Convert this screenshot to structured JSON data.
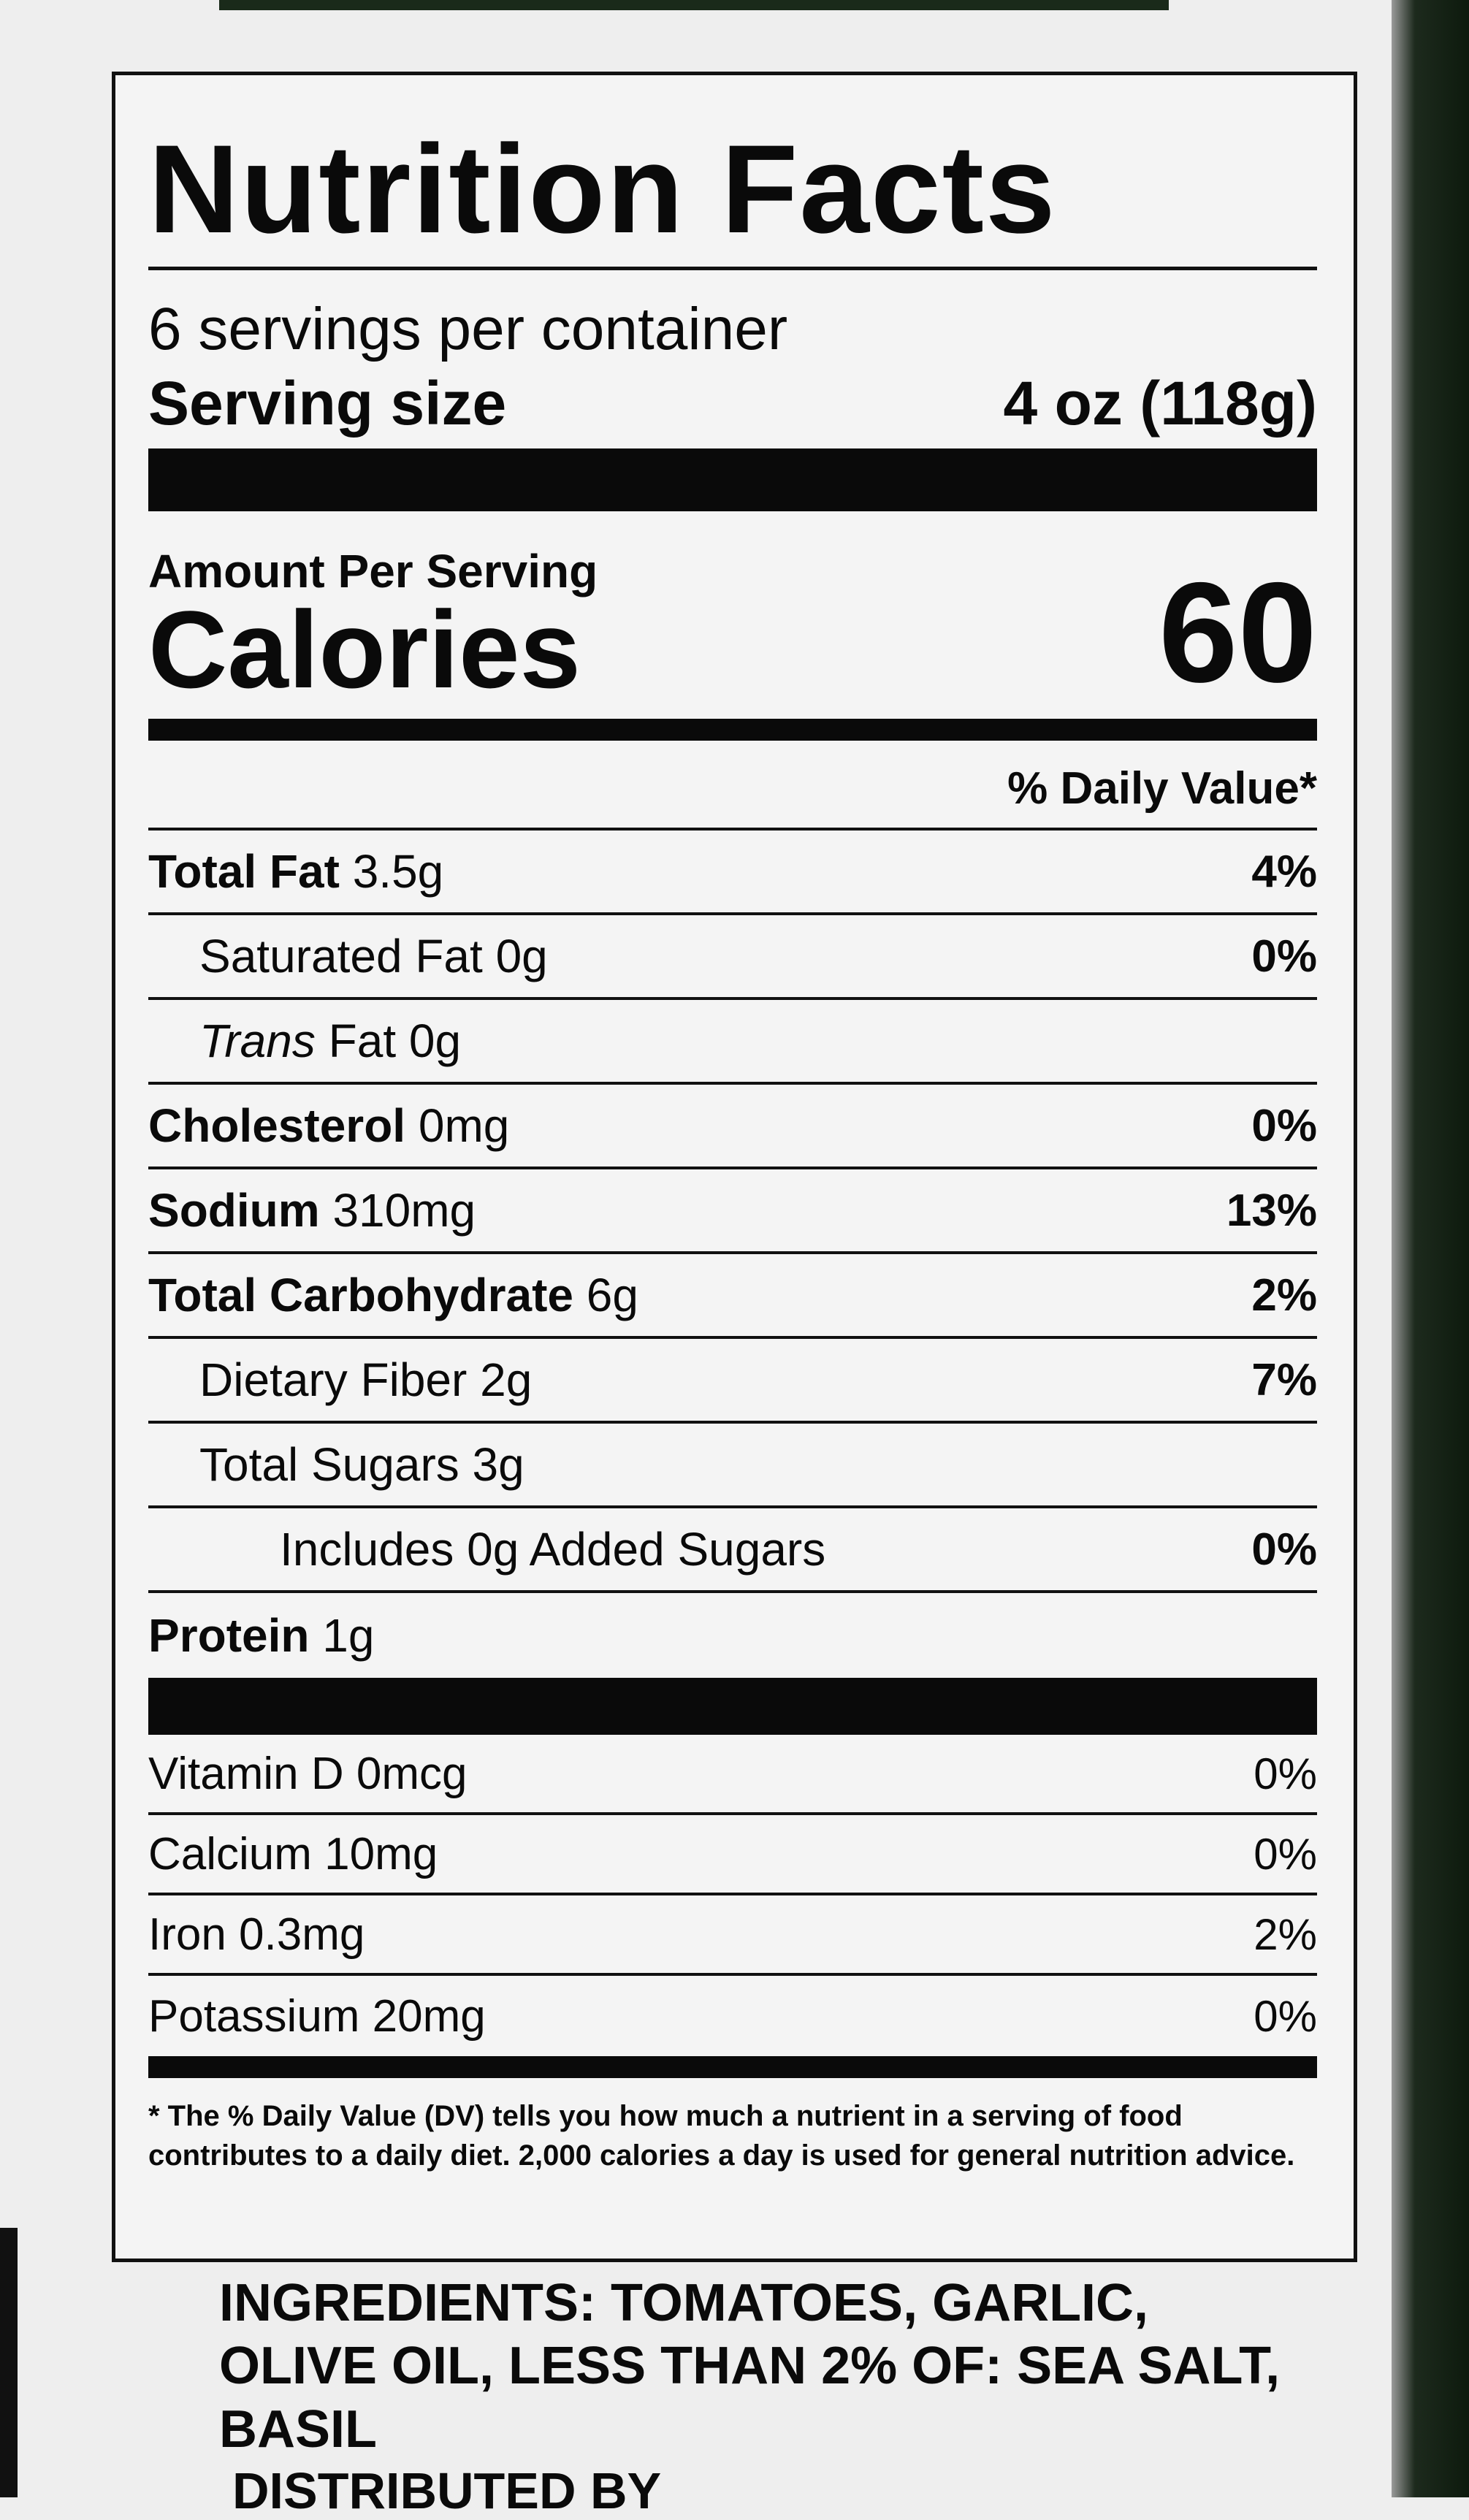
{
  "label": {
    "title": "Nutrition Facts",
    "servings_per_container": "6 servings per container",
    "serving_size_label": "Serving size",
    "serving_size_value": "4 oz (118g)",
    "amount_per_serving": "Amount Per Serving",
    "calories_label": "Calories",
    "calories_value": "60",
    "daily_value_header": "% Daily Value*",
    "nutrients": [
      {
        "name": "Total Fat",
        "amount": "3.5g",
        "dv": "4%"
      },
      {
        "name": "Saturated Fat",
        "amount": "0g",
        "dv": "0%"
      },
      {
        "name": "Trans",
        "name_rest": " Fat",
        "amount": "0g",
        "dv": ""
      },
      {
        "name": "Cholesterol",
        "amount": "0mg",
        "dv": "0%"
      },
      {
        "name": "Sodium",
        "amount": "310mg",
        "dv": "13%"
      },
      {
        "name": "Total Carbohydrate",
        "amount": "6g",
        "dv": "2%"
      },
      {
        "name": "Dietary Fiber",
        "amount": "2g",
        "dv": "7%"
      },
      {
        "name": "Total Sugars",
        "amount": "3g",
        "dv": ""
      },
      {
        "name": "Includes 0g Added Sugars",
        "amount": "",
        "dv": "0%"
      },
      {
        "name": "Protein",
        "amount": "1g",
        "dv": ""
      }
    ],
    "vitamins": [
      {
        "name": "Vitamin D 0mcg",
        "dv": "0%"
      },
      {
        "name": "Calcium 10mg",
        "dv": "0%"
      },
      {
        "name": "Iron 0.3mg",
        "dv": "2%"
      },
      {
        "name": "Potassium 20mg",
        "dv": "0%"
      }
    ],
    "footnote": "* The % Daily Value (DV) tells you how much a nutrient in a serving of food contributes to a daily diet. 2,000 calories a day is used for general nutrition advice."
  },
  "ingredients": "INGREDIENTS: TOMATOES, GARLIC, OLIVE OIL, LESS THAN 2% OF: SEA SALT, BASIL",
  "distributed_by": "DISTRIBUTED BY"
}
